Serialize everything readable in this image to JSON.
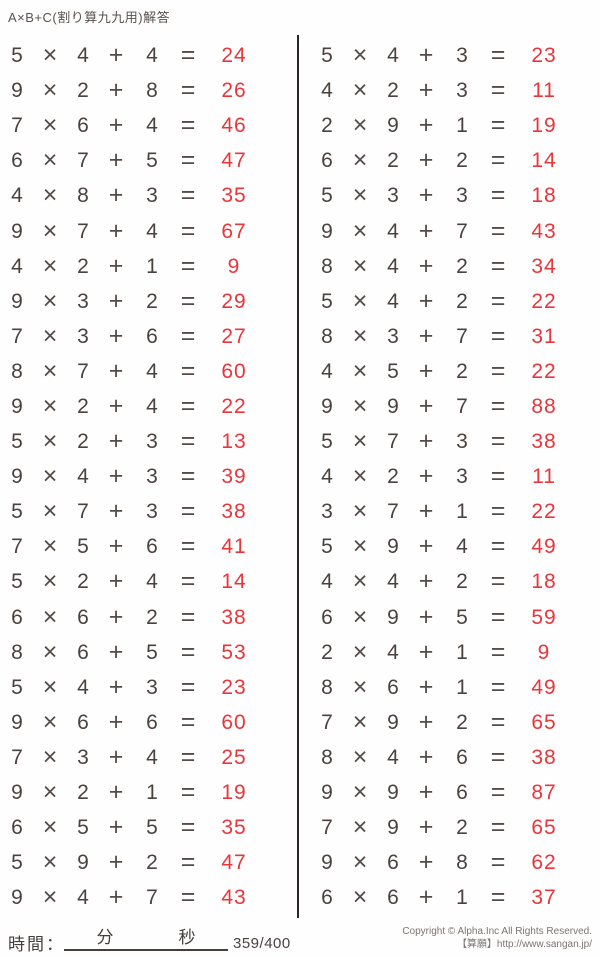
{
  "page": {
    "title": "A×B+C(割り算九九用)解答"
  },
  "worksheet": {
    "multiply_sign": "×",
    "plus_sign": "+",
    "equals_sign": "=",
    "columns": [
      {
        "problems": [
          {
            "a": "5",
            "b": "4",
            "c": "4",
            "answer": "24"
          },
          {
            "a": "9",
            "b": "2",
            "c": "8",
            "answer": "26"
          },
          {
            "a": "7",
            "b": "6",
            "c": "4",
            "answer": "46"
          },
          {
            "a": "6",
            "b": "7",
            "c": "5",
            "answer": "47"
          },
          {
            "a": "4",
            "b": "8",
            "c": "3",
            "answer": "35"
          },
          {
            "a": "9",
            "b": "7",
            "c": "4",
            "answer": "67"
          },
          {
            "a": "4",
            "b": "2",
            "c": "1",
            "answer": "9"
          },
          {
            "a": "9",
            "b": "3",
            "c": "2",
            "answer": "29"
          },
          {
            "a": "7",
            "b": "3",
            "c": "6",
            "answer": "27"
          },
          {
            "a": "8",
            "b": "7",
            "c": "4",
            "answer": "60"
          },
          {
            "a": "9",
            "b": "2",
            "c": "4",
            "answer": "22"
          },
          {
            "a": "5",
            "b": "2",
            "c": "3",
            "answer": "13"
          },
          {
            "a": "9",
            "b": "4",
            "c": "3",
            "answer": "39"
          },
          {
            "a": "5",
            "b": "7",
            "c": "3",
            "answer": "38"
          },
          {
            "a": "7",
            "b": "5",
            "c": "6",
            "answer": "41"
          },
          {
            "a": "5",
            "b": "2",
            "c": "4",
            "answer": "14"
          },
          {
            "a": "6",
            "b": "6",
            "c": "2",
            "answer": "38"
          },
          {
            "a": "8",
            "b": "6",
            "c": "5",
            "answer": "53"
          },
          {
            "a": "5",
            "b": "4",
            "c": "3",
            "answer": "23"
          },
          {
            "a": "9",
            "b": "6",
            "c": "6",
            "answer": "60"
          },
          {
            "a": "7",
            "b": "3",
            "c": "4",
            "answer": "25"
          },
          {
            "a": "9",
            "b": "2",
            "c": "1",
            "answer": "19"
          },
          {
            "a": "6",
            "b": "5",
            "c": "5",
            "answer": "35"
          },
          {
            "a": "5",
            "b": "9",
            "c": "2",
            "answer": "47"
          },
          {
            "a": "9",
            "b": "4",
            "c": "7",
            "answer": "43"
          }
        ]
      },
      {
        "problems": [
          {
            "a": "5",
            "b": "4",
            "c": "3",
            "answer": "23"
          },
          {
            "a": "4",
            "b": "2",
            "c": "3",
            "answer": "11"
          },
          {
            "a": "2",
            "b": "9",
            "c": "1",
            "answer": "19"
          },
          {
            "a": "6",
            "b": "2",
            "c": "2",
            "answer": "14"
          },
          {
            "a": "5",
            "b": "3",
            "c": "3",
            "answer": "18"
          },
          {
            "a": "9",
            "b": "4",
            "c": "7",
            "answer": "43"
          },
          {
            "a": "8",
            "b": "4",
            "c": "2",
            "answer": "34"
          },
          {
            "a": "5",
            "b": "4",
            "c": "2",
            "answer": "22"
          },
          {
            "a": "8",
            "b": "3",
            "c": "7",
            "answer": "31"
          },
          {
            "a": "4",
            "b": "5",
            "c": "2",
            "answer": "22"
          },
          {
            "a": "9",
            "b": "9",
            "c": "7",
            "answer": "88"
          },
          {
            "a": "5",
            "b": "7",
            "c": "3",
            "answer": "38"
          },
          {
            "a": "4",
            "b": "2",
            "c": "3",
            "answer": "11"
          },
          {
            "a": "3",
            "b": "7",
            "c": "1",
            "answer": "22"
          },
          {
            "a": "5",
            "b": "9",
            "c": "4",
            "answer": "49"
          },
          {
            "a": "4",
            "b": "4",
            "c": "2",
            "answer": "18"
          },
          {
            "a": "6",
            "b": "9",
            "c": "5",
            "answer": "59"
          },
          {
            "a": "2",
            "b": "4",
            "c": "1",
            "answer": "9"
          },
          {
            "a": "8",
            "b": "6",
            "c": "1",
            "answer": "49"
          },
          {
            "a": "7",
            "b": "9",
            "c": "2",
            "answer": "65"
          },
          {
            "a": "8",
            "b": "4",
            "c": "6",
            "answer": "38"
          },
          {
            "a": "9",
            "b": "9",
            "c": "6",
            "answer": "87"
          },
          {
            "a": "7",
            "b": "9",
            "c": "2",
            "answer": "65"
          },
          {
            "a": "9",
            "b": "6",
            "c": "8",
            "answer": "62"
          },
          {
            "a": "6",
            "b": "6",
            "c": "1",
            "answer": "37"
          }
        ]
      }
    ]
  },
  "footer": {
    "time_label": "時間：",
    "minutes_label": "分",
    "seconds_label": "秒",
    "progress": "359/400",
    "copyright_line1": "Copyright © Alpha.Inc All Rights Reserved.",
    "copyright_line2": "【算願】http://www.sangan.jp/"
  },
  "colors": {
    "answer_red": "#e8363b",
    "ink_dark": "#4a423f",
    "divider_dark": "#2b2523",
    "copyright_gray": "#7d7470"
  }
}
